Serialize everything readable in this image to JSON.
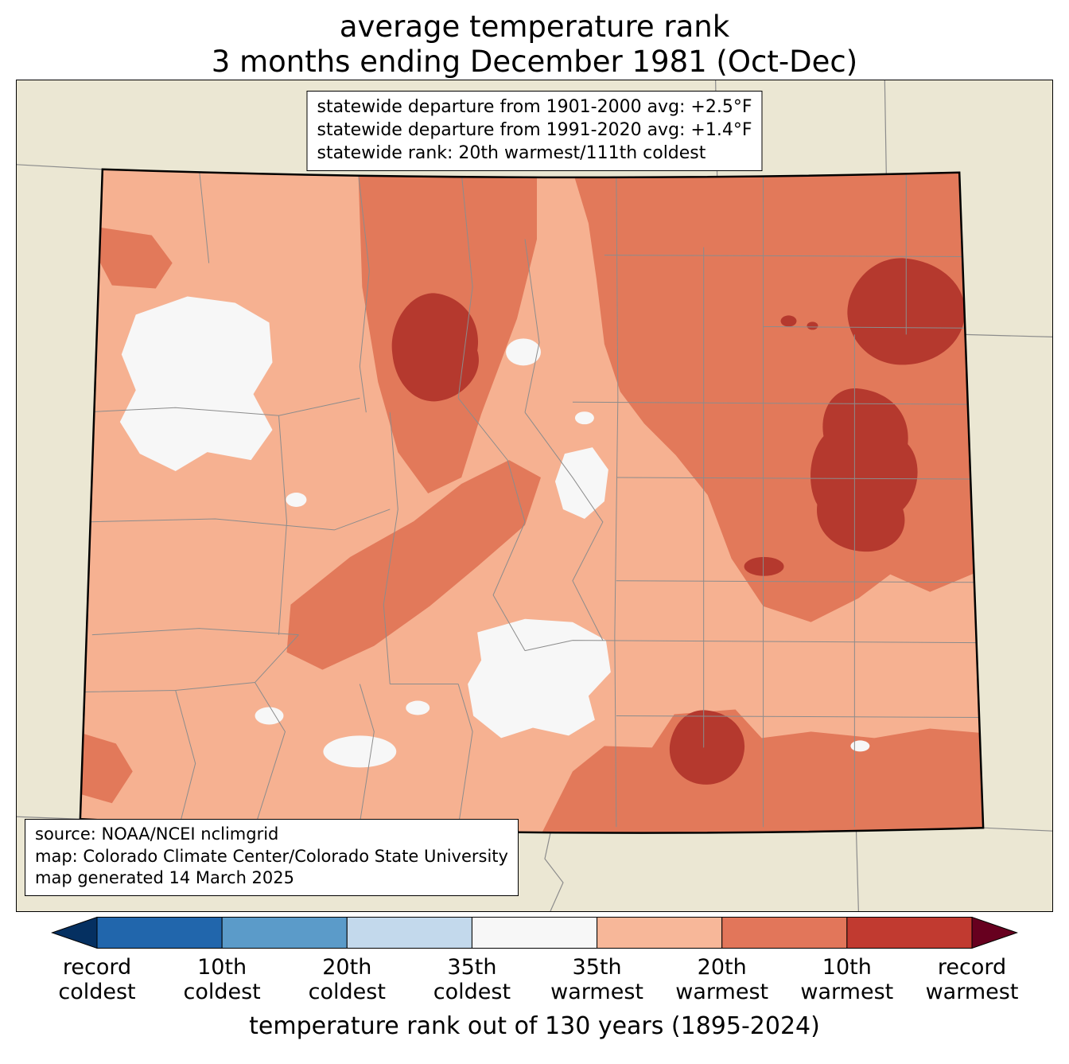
{
  "title": {
    "line1": "average temperature rank",
    "line2": "3 months ending December 1981 (Oct-Dec)"
  },
  "info_box": {
    "lines": [
      "statewide departure from 1901-2000 avg: +2.5°F",
      "statewide departure from 1991-2020 avg: +1.4°F",
      "statewide rank: 20th warmest/111th coldest"
    ]
  },
  "source_box": {
    "lines": [
      "source: NOAA/NCEI nclimgrid",
      "map: Colorado Climate Center/Colorado State University",
      "map generated 14 March 2025"
    ]
  },
  "colorbar": {
    "axis_label": "temperature rank out of 130 years (1895-2024)",
    "tick_labels": [
      {
        "top": "record",
        "bottom": "coldest"
      },
      {
        "top": "10th",
        "bottom": "coldest"
      },
      {
        "top": "20th",
        "bottom": "coldest"
      },
      {
        "top": "35th",
        "bottom": "coldest"
      },
      {
        "top": "35th",
        "bottom": "warmest"
      },
      {
        "top": "20th",
        "bottom": "warmest"
      },
      {
        "top": "10th",
        "bottom": "warmest"
      },
      {
        "top": "record",
        "bottom": "warmest"
      }
    ],
    "segment_colors": [
      "#2166ac",
      "#5b9bc9",
      "#c3d9ec",
      "#f7f7f7",
      "#f7b799",
      "#e2765a",
      "#c13a30"
    ],
    "left_arrow_color": "#053061",
    "right_arrow_color": "#67001f"
  },
  "map": {
    "background_color": "#ebe7d3",
    "state_border_color": "#000000",
    "county_line_color": "#8c8c8c",
    "neighbor_line_color": "#8c8c8c",
    "category_colors": {
      "near_normal": "#f7f7f7",
      "warm35": "#f6b191",
      "warm20": "#e2795a",
      "warm10": "#b5392e"
    }
  }
}
